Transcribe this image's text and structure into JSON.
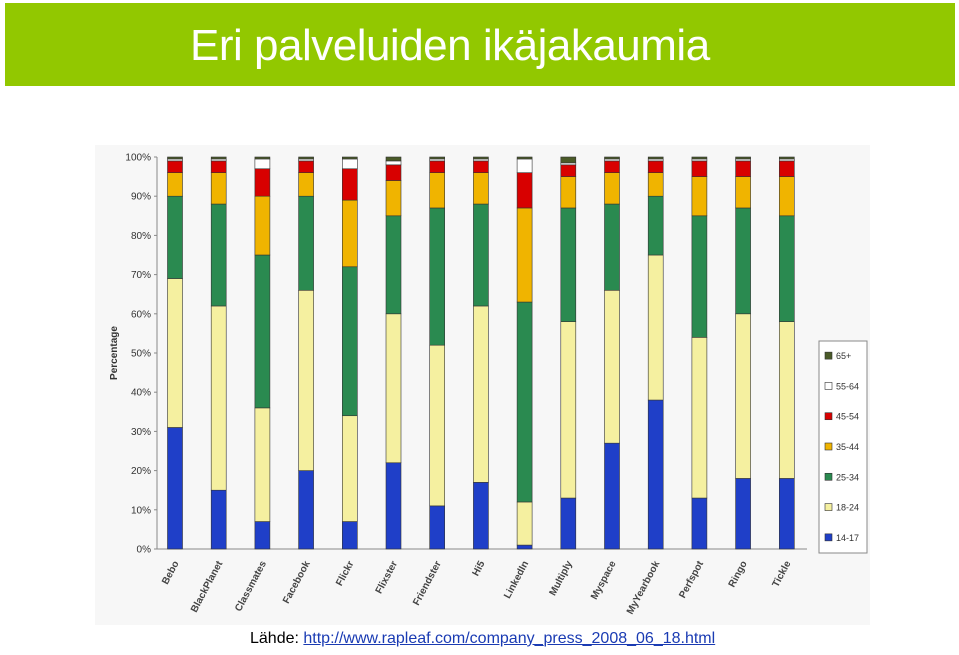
{
  "header": {
    "title": "Eri palveluiden ikäjakaumia"
  },
  "source": {
    "label": "Lähde:",
    "url": "http://www.rapleaf.com/company_press_2008_06_18.html"
  },
  "colors": {
    "banner": "#92c800"
  },
  "chart_data": {
    "type": "bar",
    "stacked": true,
    "ylabel": "Percentage",
    "xlabel": "",
    "ylim": [
      0,
      100
    ],
    "yticks": [
      "0%",
      "10%",
      "20%",
      "30%",
      "40%",
      "50%",
      "60%",
      "70%",
      "80%",
      "90%",
      "100%"
    ],
    "grid": false,
    "legend_position": "right",
    "categories": [
      "Bebo",
      "BlackPlanet",
      "Classmates",
      "Facebook",
      "Flickr",
      "Flixster",
      "Friendster",
      "Hi5",
      "LinkedIn",
      "Multiply",
      "Myspace",
      "MyYearbook",
      "Perfspot",
      "Ringo",
      "Tickle"
    ],
    "series": [
      {
        "name": "14-17",
        "color": "#1f3fc8",
        "values": [
          31,
          15,
          7,
          20,
          7,
          22,
          11,
          17,
          1,
          13,
          27,
          38,
          13,
          18,
          18
        ]
      },
      {
        "name": "18-24",
        "color": "#f5f0a0",
        "values": [
          38,
          47,
          29,
          46,
          27,
          38,
          41,
          45,
          11,
          45,
          39,
          37,
          41,
          42,
          40
        ]
      },
      {
        "name": "25-34",
        "color": "#2a8a50",
        "values": [
          21,
          26,
          39,
          24,
          38,
          25,
          35,
          26,
          51,
          29,
          22,
          15,
          31,
          27,
          27
        ]
      },
      {
        "name": "35-44",
        "color": "#f0b400",
        "values": [
          6,
          8,
          15,
          6,
          17,
          9,
          9,
          8,
          24,
          8,
          8,
          6,
          10,
          8,
          10
        ]
      },
      {
        "name": "45-54",
        "color": "#d80000",
        "values": [
          3,
          3,
          7,
          3,
          8,
          4,
          3,
          3,
          9,
          3,
          3,
          3,
          4,
          4,
          4
        ]
      },
      {
        "name": "55-64",
        "color": "#ffffff",
        "values": [
          0.5,
          0.5,
          2.5,
          0.5,
          2.5,
          1,
          0.5,
          0.5,
          3.5,
          0.5,
          0.5,
          0.5,
          0.5,
          0.5,
          0.5
        ]
      },
      {
        "name": "65+",
        "color": "#4a5a28",
        "values": [
          0.5,
          0.5,
          0.5,
          0.5,
          0.5,
          1,
          0.5,
          0.5,
          0.5,
          1.5,
          0.5,
          0.5,
          0.5,
          0.5,
          0.5
        ]
      }
    ]
  }
}
